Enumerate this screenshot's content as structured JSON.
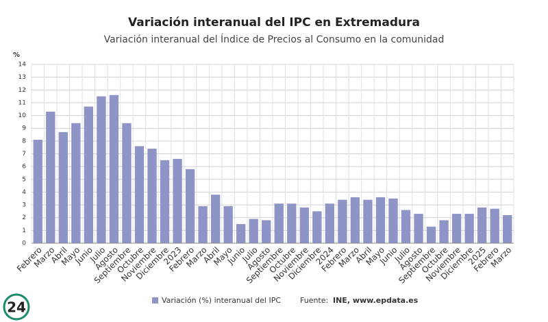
{
  "chart_data": {
    "type": "bar",
    "title": "Variación interanual del IPC en Extremadura",
    "subtitle": "Variación interanual del Índice de Precios al Consumo en la comunidad",
    "y_label": "%",
    "categories": [
      "Febrero",
      "Marzo",
      "Abril",
      "Mayo",
      "Junio",
      "Julio",
      "Agosto",
      "Septiembre",
      "Octubre",
      "Noviembre",
      "Diciembre",
      "2023",
      "Febrero",
      "Marzo",
      "Abril",
      "Mayo",
      "Junio",
      "Julio",
      "Agosto",
      "Septiembre",
      "Octubre",
      "Noviembre",
      "Diciembre",
      "2024",
      "Febrero",
      "Marzo",
      "Abril",
      "Mayo",
      "Junio",
      "Julio",
      "Agosto",
      "Septiembre",
      "Octubre",
      "Noviembre",
      "Diciembre",
      "2025",
      "Febrero",
      "Marzo"
    ],
    "series": [
      {
        "name": "Variación (%) interanual del IPC",
        "color": "#8f94c6",
        "values": [
          8.1,
          10.3,
          8.7,
          9.4,
          10.7,
          11.5,
          11.6,
          9.4,
          7.6,
          7.4,
          6.5,
          6.6,
          5.8,
          2.9,
          3.8,
          2.9,
          1.5,
          1.9,
          1.8,
          3.1,
          3.1,
          2.8,
          2.5,
          3.1,
          3.4,
          3.6,
          3.4,
          3.6,
          3.5,
          2.6,
          2.3,
          1.3,
          1.8,
          2.3,
          2.3,
          2.8,
          2.7,
          2.2
        ]
      }
    ],
    "ylim": [
      0,
      14
    ],
    "yticks": [
      0,
      1,
      2,
      3,
      4,
      5,
      6,
      7,
      8,
      9,
      10,
      11,
      12,
      13,
      14
    ],
    "grid": true,
    "source_label": "Fuente:",
    "source": "INE, www.epdata.es",
    "logo": "24"
  }
}
